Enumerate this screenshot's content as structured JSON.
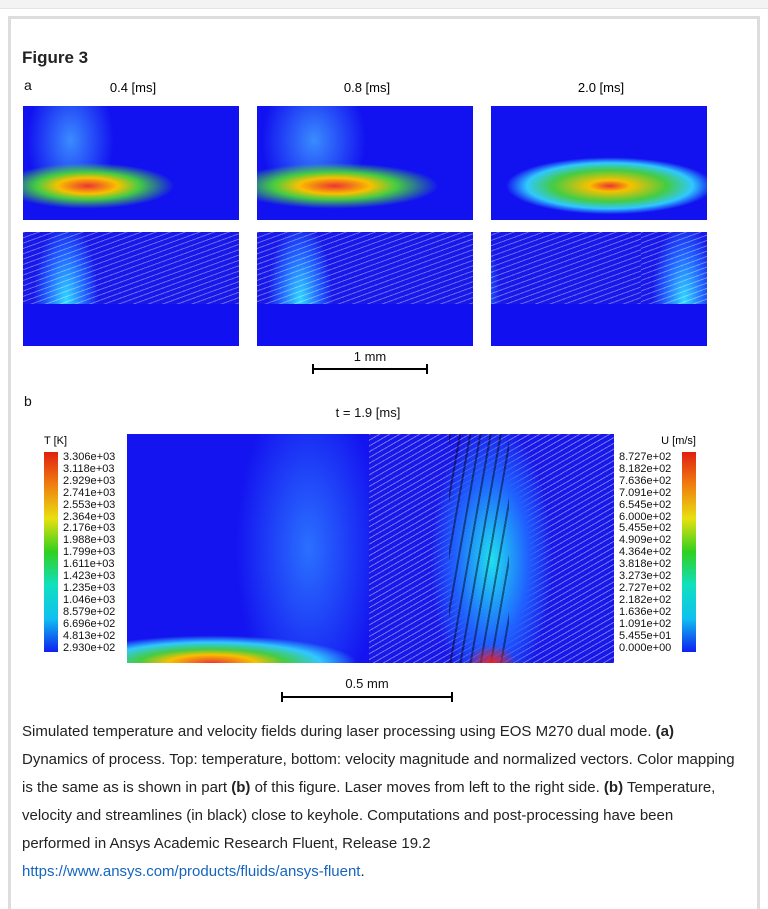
{
  "figure": {
    "title": "Figure 3",
    "part_a": "a",
    "part_b": "b",
    "columns": [
      "0.4 [ms]",
      "0.8 [ms]",
      "2.0 [ms]"
    ],
    "scale_a": "1 mm",
    "time_b": "t = 1.9 [ms]",
    "scale_b": "0.5 mm",
    "legend_t": {
      "title": "T [K]",
      "ticks": [
        "3.306e+03",
        "3.118e+03",
        "2.929e+03",
        "2.741e+03",
        "2.553e+03",
        "2.364e+03",
        "2.176e+03",
        "1.988e+03",
        "1.799e+03",
        "1.611e+03",
        "1.423e+03",
        "1.235e+03",
        "1.046e+03",
        "8.579e+02",
        "6.696e+02",
        "4.813e+02",
        "2.930e+02"
      ]
    },
    "legend_u": {
      "title": "U [m/s]",
      "ticks": [
        "8.727e+02",
        "8.182e+02",
        "7.636e+02",
        "7.091e+02",
        "6.545e+02",
        "6.000e+02",
        "5.455e+02",
        "4.909e+02",
        "4.364e+02",
        "3.818e+02",
        "3.273e+02",
        "2.727e+02",
        "2.182e+02",
        "1.636e+02",
        "1.091e+02",
        "5.455e+01",
        "0.000e+00"
      ]
    }
  },
  "caption": {
    "text1": "Simulated temperature and velocity fields during laser processing using EOS M270 dual mode. ",
    "b1": "(a)",
    "text2": " Dynamics of process. Top: temperature, bottom: velocity magnitude and normalized vectors. Color mapping is the same as is shown in part ",
    "b2": "(b)",
    "text3": " of this figure. Laser moves from left to the right side. ",
    "b3": "(b)",
    "text4": " Temperature, velocity and streamlines (in black) close to keyhole. Computations and post-processing have been performed in Ansys Academic Research Fluent, Release 19.2",
    "link": "https://www.ansys.com/products/fluids/ansys-fluent",
    "text5": "."
  }
}
